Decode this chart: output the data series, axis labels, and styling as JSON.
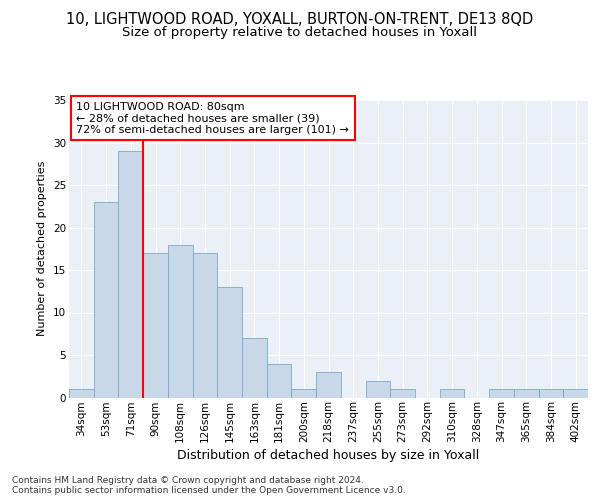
{
  "title": "10, LIGHTWOOD ROAD, YOXALL, BURTON-ON-TRENT, DE13 8QD",
  "subtitle": "Size of property relative to detached houses in Yoxall",
  "xlabel": "Distribution of detached houses by size in Yoxall",
  "ylabel": "Number of detached properties",
  "categories": [
    "34sqm",
    "53sqm",
    "71sqm",
    "90sqm",
    "108sqm",
    "126sqm",
    "145sqm",
    "163sqm",
    "181sqm",
    "200sqm",
    "218sqm",
    "237sqm",
    "255sqm",
    "273sqm",
    "292sqm",
    "310sqm",
    "328sqm",
    "347sqm",
    "365sqm",
    "384sqm",
    "402sqm"
  ],
  "values": [
    1,
    23,
    29,
    17,
    18,
    17,
    13,
    7,
    4,
    1,
    3,
    0,
    2,
    1,
    0,
    1,
    0,
    1,
    1,
    1,
    1
  ],
  "bar_color": "#c8d8e8",
  "bar_edge_color": "#7aaac8",
  "red_line_index": 2,
  "annotation_text": "10 LIGHTWOOD ROAD: 80sqm\n← 28% of detached houses are smaller (39)\n72% of semi-detached houses are larger (101) →",
  "annotation_box_color": "white",
  "annotation_box_edge_color": "red",
  "red_line_color": "red",
  "ylim": [
    0,
    35
  ],
  "yticks": [
    0,
    5,
    10,
    15,
    20,
    25,
    30,
    35
  ],
  "background_color": "#eaf0f6",
  "footer": "Contains HM Land Registry data © Crown copyright and database right 2024.\nContains public sector information licensed under the Open Government Licence v3.0.",
  "title_fontsize": 10.5,
  "subtitle_fontsize": 9.5,
  "xlabel_fontsize": 9,
  "ylabel_fontsize": 8,
  "tick_fontsize": 7.5,
  "annotation_fontsize": 8,
  "footer_fontsize": 6.5
}
